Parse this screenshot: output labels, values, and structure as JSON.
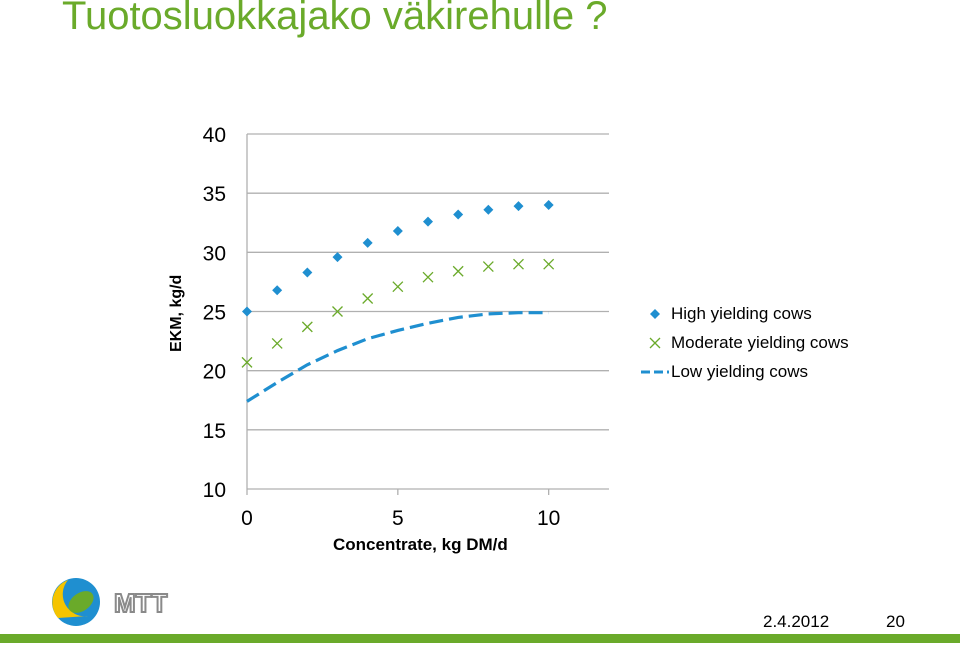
{
  "page": {
    "title": "Tuotosluokkajako väkirehulle ?"
  },
  "footer": {
    "date": "2.4.2012",
    "page_number": "20",
    "logo_text": "MTT"
  },
  "colors": {
    "title": "#6aaa2a",
    "high": "#1f8fd0",
    "moderate": "#6aaa2a",
    "low": "#1f8fd0",
    "grid": "#b0b0b0",
    "footer_bar": "#6aaa2a"
  },
  "chart_data": {
    "type": "scatter",
    "xlabel": "Concentrate, kg DM/d",
    "ylabel": "EKM, kg/d",
    "xlim": [
      0,
      12
    ],
    "ylim": [
      10,
      40
    ],
    "xticks": [
      "0",
      "5",
      "10"
    ],
    "yticks": [
      "10",
      "15",
      "20",
      "25",
      "30",
      "35",
      "40"
    ],
    "grid": "horizontal",
    "legend_position": "right",
    "series": [
      {
        "name": "High yielding cows",
        "marker": "diamond",
        "x": [
          0,
          1,
          2,
          3,
          4,
          5,
          6,
          7,
          8,
          9,
          10
        ],
        "y": [
          25.0,
          26.8,
          28.3,
          29.6,
          30.8,
          31.8,
          32.6,
          33.2,
          33.6,
          33.9,
          34.0
        ]
      },
      {
        "name": "Moderate yielding cows",
        "marker": "x",
        "x": [
          0,
          1,
          2,
          3,
          4,
          5,
          6,
          7,
          8,
          9,
          10
        ],
        "y": [
          20.7,
          22.3,
          23.7,
          25.0,
          26.1,
          27.1,
          27.9,
          28.4,
          28.8,
          29.0,
          29.0
        ]
      },
      {
        "name": "Low yielding cows",
        "marker": "dashed-line",
        "x": [
          0,
          1,
          2,
          3,
          4,
          5,
          6,
          7,
          8,
          9,
          10
        ],
        "y": [
          17.4,
          19.0,
          20.5,
          21.7,
          22.7,
          23.4,
          24.0,
          24.5,
          24.8,
          24.9,
          24.9
        ]
      }
    ]
  }
}
